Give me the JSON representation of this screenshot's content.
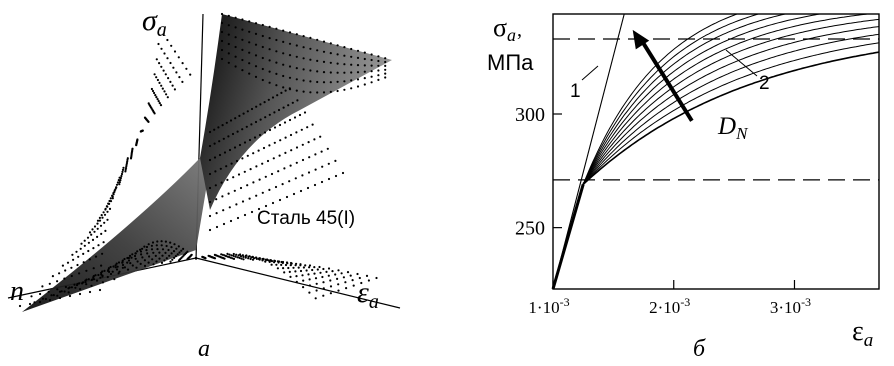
{
  "figure": {
    "panel_a": {
      "caption": "а",
      "axis_sigma": "σ",
      "axis_sigma_sub": "a",
      "axis_eps": "ε",
      "axis_eps_sub": "a",
      "axis_n": "n",
      "material_label": "Сталь 45(I)"
    },
    "panel_b": {
      "caption": "б",
      "ylabel_symbol": "σ",
      "ylabel_sub": "a",
      "ylabel_unit": "МПа",
      "xlabel_symbol": "ε",
      "xlabel_sub": "a",
      "curve_label_1": "1",
      "curve_label_2": "2",
      "arrow_symbol": "D",
      "arrow_sub": "N"
    }
  },
  "chart_data": {
    "type": "line",
    "x_ticks": [
      {
        "value": 0.001,
        "label": "1·10",
        "exp": "-3"
      },
      {
        "value": 0.002,
        "label": "2·10",
        "exp": "-3"
      },
      {
        "value": 0.003,
        "label": "3·10",
        "exp": "-3"
      }
    ],
    "y_ticks": [
      {
        "value": 250,
        "label": "250"
      },
      {
        "value": 300,
        "label": "300"
      }
    ],
    "xlim": [
      0.001,
      0.0037
    ],
    "ylim": [
      223,
      344
    ],
    "dashed_levels": [
      271,
      333
    ],
    "line_1": {
      "x": [
        0.001,
        0.00159
      ],
      "y": [
        223,
        344
      ]
    },
    "curve_family": {
      "start": [
        0.001,
        223
      ],
      "knee": [
        0.00125,
        269
      ],
      "count": 10,
      "sat_min": 340,
      "sat_max": 357,
      "k_min": 700,
      "k_max": 1500
    },
    "arrow": {
      "from": [
        0.00215,
        297
      ],
      "to": [
        0.00166,
        337
      ]
    }
  }
}
